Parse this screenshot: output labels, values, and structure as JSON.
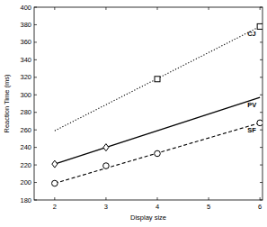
{
  "chart_data": {
    "type": "line",
    "x_label": "Display size",
    "y_label": "Reaction Time (ms)",
    "xlim": [
      1.6,
      6.05
    ],
    "xticks": [
      2,
      3,
      4,
      5,
      6
    ],
    "ylim": [
      180,
      400
    ],
    "yticks": [
      180,
      200,
      220,
      240,
      260,
      280,
      300,
      320,
      340,
      360,
      380,
      400
    ],
    "grid": false,
    "series": [
      {
        "name": "CJ",
        "color": "#000000",
        "marker": "square",
        "line_style": "dotted",
        "x": [
          4,
          6
        ],
        "values": [
          318,
          378
        ],
        "fit_x": [
          2,
          6
        ],
        "fit": [
          259,
          378
        ]
      },
      {
        "name": "PV",
        "color": "#000000",
        "marker": "diamond",
        "line_style": "solid",
        "x": [
          2,
          3
        ],
        "values": [
          221,
          240
        ],
        "fit_x": [
          2,
          6
        ],
        "fit": [
          221,
          297
        ]
      },
      {
        "name": "SF",
        "color": "#000000",
        "marker": "circle",
        "line_style": "dashed",
        "x": [
          2,
          3,
          4,
          6
        ],
        "values": [
          199,
          219,
          233,
          268
        ],
        "fit_x": [
          2,
          6
        ],
        "fit": [
          199,
          268
        ]
      }
    ]
  }
}
